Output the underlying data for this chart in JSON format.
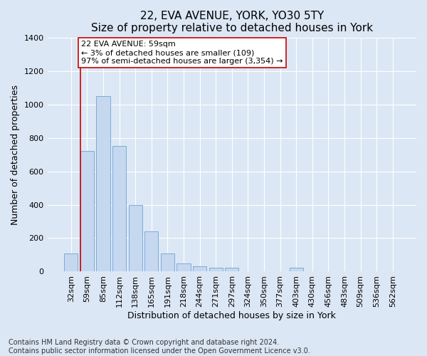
{
  "title": "22, EVA AVENUE, YORK, YO30 5TY",
  "subtitle": "Size of property relative to detached houses in York",
  "xlabel": "Distribution of detached houses by size in York",
  "ylabel": "Number of detached properties",
  "categories": [
    "32sqm",
    "59sqm",
    "85sqm",
    "112sqm",
    "138sqm",
    "165sqm",
    "191sqm",
    "218sqm",
    "244sqm",
    "271sqm",
    "297sqm",
    "324sqm",
    "350sqm",
    "377sqm",
    "403sqm",
    "430sqm",
    "456sqm",
    "483sqm",
    "509sqm",
    "536sqm",
    "562sqm"
  ],
  "values": [
    110,
    720,
    1050,
    750,
    400,
    240,
    110,
    50,
    30,
    25,
    25,
    0,
    0,
    0,
    25,
    0,
    0,
    0,
    0,
    0,
    0
  ],
  "bar_color": "#c5d8f0",
  "bar_edge_color": "#6ea3d0",
  "red_line_bar_index": 1,
  "red_line_color": "#cc0000",
  "ylim": [
    0,
    1400
  ],
  "yticks": [
    0,
    200,
    400,
    600,
    800,
    1000,
    1200,
    1400
  ],
  "annotation_text": "22 EVA AVENUE: 59sqm\n← 3% of detached houses are smaller (109)\n97% of semi-detached houses are larger (3,354) →",
  "annotation_box_color": "#ffffff",
  "annotation_box_edge_color": "#cc0000",
  "footer_line1": "Contains HM Land Registry data © Crown copyright and database right 2024.",
  "footer_line2": "Contains public sector information licensed under the Open Government Licence v3.0.",
  "background_color": "#dce7f5",
  "grid_color": "#ffffff",
  "title_fontsize": 11,
  "axis_label_fontsize": 9,
  "tick_fontsize": 8,
  "annotation_fontsize": 8,
  "footer_fontsize": 7
}
